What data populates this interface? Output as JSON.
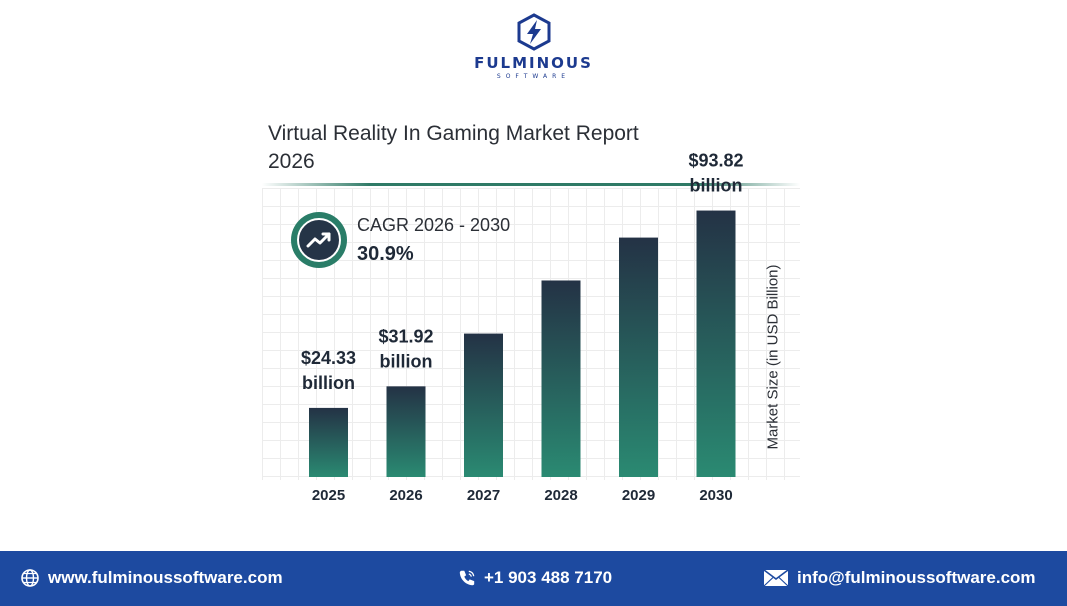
{
  "brand": {
    "name": "FULMINOUS",
    "tagline": "SOFTWARE",
    "color": "#1c3a8f"
  },
  "report": {
    "title": "Virtual Reality In Gaming Market Report 2026"
  },
  "cagr": {
    "label": "CAGR 2026 - 2030",
    "value": "30.9%",
    "icon": "trending-up-icon"
  },
  "chart_data": {
    "type": "bar",
    "categories": [
      "2025",
      "2026",
      "2027",
      "2028",
      "2029",
      "2030"
    ],
    "values": [
      24.33,
      31.92,
      50.5,
      69.2,
      84.3,
      93.82
    ],
    "data_labels": [
      "$24.33 billion",
      "$31.92 billion",
      "",
      "",
      "",
      "$93.82 billion"
    ],
    "ylabel": "Market Size (in USD Billion)",
    "ylim": [
      0,
      100
    ],
    "grid": true,
    "legend": "none",
    "bar_gradient": [
      "#243245",
      "#2a8a72"
    ]
  },
  "footer": {
    "website": "www.fulminoussoftware.com",
    "phone": "+1 903 488 7170",
    "email": "info@fulminoussoftware.com",
    "background": "#1d4aa0"
  }
}
